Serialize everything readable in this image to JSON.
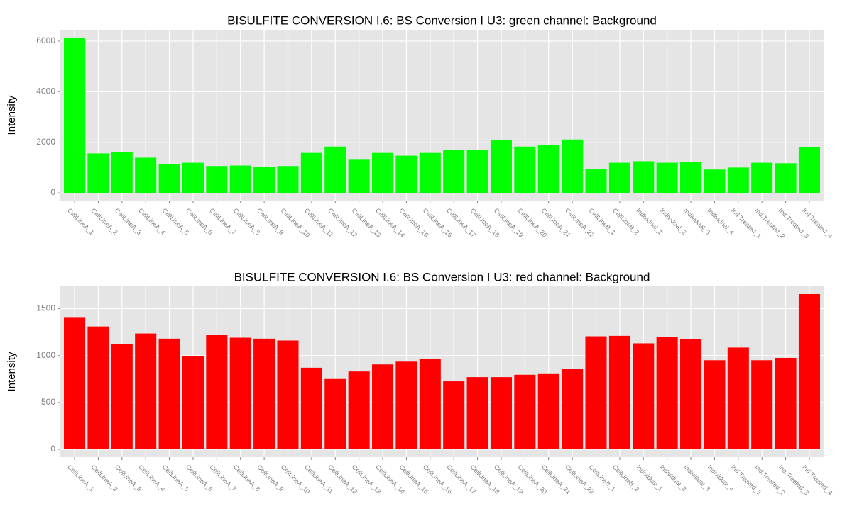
{
  "chart_data": [
    {
      "type": "bar",
      "title": "BISULFITE CONVERSION I.6: BS Conversion I U3: green channel: Background",
      "y_label": "Intensity",
      "color": "#00ff00",
      "grid": true,
      "categories": [
        "CellLineA_1",
        "CellLineA_2",
        "CellLineA_3",
        "CellLineA_4",
        "CellLineA_5",
        "CellLineA_6",
        "CellLineA_7",
        "CellLineA_8",
        "CellLineA_9",
        "CellLineA_10",
        "CellLineA_11",
        "CellLineA_12",
        "CellLineA_13",
        "CellLineA_14",
        "CellLineA_15",
        "CellLineA_16",
        "CellLineA_17",
        "CellLineA_18",
        "CellLineA_19",
        "CellLineA_20",
        "CellLineA_21",
        "CellLineA_22",
        "CellLineB_1",
        "CellLineB_2",
        "Individual_1",
        "Individual_2",
        "Individual_3",
        "Individual_4",
        "Ind.Treated_1",
        "Ind.Treated_2",
        "Ind.Treated_3",
        "Ind.Treated_4"
      ],
      "values": [
        6140,
        1560,
        1610,
        1390,
        1140,
        1190,
        1060,
        1080,
        1030,
        1060,
        1580,
        1830,
        1310,
        1580,
        1470,
        1580,
        1690,
        1690,
        2080,
        1830,
        1890,
        2110,
        940,
        1190,
        1250,
        1190,
        1220,
        920,
        1000,
        1190,
        1170,
        1810
      ],
      "ylim": [
        -307,
        6447
      ],
      "yticks": [
        0,
        2000,
        4000,
        6000
      ]
    },
    {
      "type": "bar",
      "title": "BISULFITE CONVERSION I.6: BS Conversion I U3: red channel: Background",
      "y_label": "Intensity",
      "color": "#ff0000",
      "grid": true,
      "categories": [
        "CellLineA_1",
        "CellLineA_2",
        "CellLineA_3",
        "CellLineA_4",
        "CellLineA_5",
        "CellLineA_6",
        "CellLineA_7",
        "CellLineA_8",
        "CellLineA_9",
        "CellLineA_10",
        "CellLineA_11",
        "CellLineA_12",
        "CellLineA_13",
        "CellLineA_14",
        "CellLineA_15",
        "CellLineA_16",
        "CellLineA_17",
        "CellLineA_18",
        "CellLineA_19",
        "CellLineA_20",
        "CellLineA_21",
        "CellLineA_22",
        "CellLineB_1",
        "CellLineB_2",
        "Individual_1",
        "Individual_2",
        "Individual_3",
        "Individual_4",
        "Ind.Treated_1",
        "Ind.Treated_2",
        "Ind.Treated_3",
        "Ind.Treated_4"
      ],
      "values": [
        1410,
        1310,
        1120,
        1235,
        1180,
        995,
        1220,
        1190,
        1180,
        1160,
        870,
        750,
        830,
        905,
        935,
        965,
        725,
        770,
        770,
        795,
        810,
        860,
        1205,
        1210,
        1130,
        1195,
        1175,
        950,
        1085,
        950,
        975,
        1655
      ],
      "ylim": [
        -83,
        1738
      ],
      "yticks": [
        0,
        500,
        1000,
        1500
      ]
    }
  ]
}
